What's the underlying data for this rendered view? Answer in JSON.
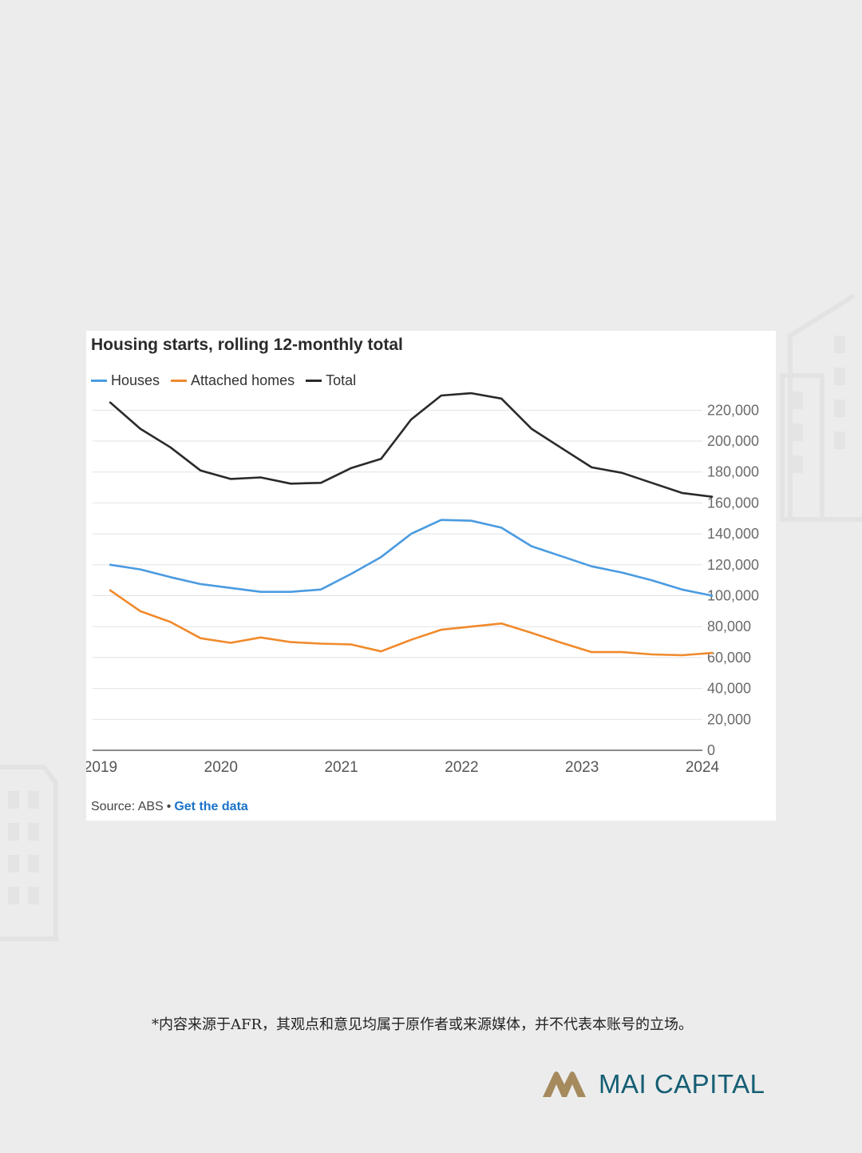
{
  "chart_data": {
    "type": "line",
    "title": "Housing starts, rolling 12-monthly total",
    "xlabel": "",
    "ylabel": "",
    "x_ticks": [
      "2019",
      "2020",
      "2021",
      "2022",
      "2023",
      "2024"
    ],
    "y_ticks": [
      "220,000",
      "200,000",
      "180,000",
      "160,000",
      "140,000",
      "120,000",
      "100,000",
      "80,000",
      "60,000",
      "40,000",
      "20,000",
      "0"
    ],
    "ylim": [
      0,
      230000
    ],
    "xlim": [
      2019.0,
      2024.0
    ],
    "y_axis_position": "right",
    "grid": true,
    "legend_position": "top-left",
    "series": [
      {
        "name": "Houses",
        "color": "#4a9be0",
        "x": [
          2019.08,
          2019.33,
          2019.58,
          2019.83,
          2020.08,
          2020.33,
          2020.58,
          2020.83,
          2021.08,
          2021.33,
          2021.58,
          2021.83,
          2022.08,
          2022.33,
          2022.58,
          2022.83,
          2023.08,
          2023.33,
          2023.58,
          2023.83,
          2024.08
        ],
        "values": [
          120000,
          117000,
          112000,
          107500,
          105000,
          102500,
          102500,
          104000,
          114000,
          125000,
          140000,
          149000,
          148500,
          144000,
          132000,
          125500,
          119000,
          115000,
          110000,
          104000,
          100000
        ]
      },
      {
        "name": "Attached homes",
        "color": "#f08a2c",
        "x": [
          2019.08,
          2019.33,
          2019.58,
          2019.83,
          2020.08,
          2020.33,
          2020.58,
          2020.83,
          2021.08,
          2021.33,
          2021.58,
          2021.83,
          2022.08,
          2022.33,
          2022.58,
          2022.83,
          2023.08,
          2023.33,
          2023.58,
          2023.83,
          2024.08
        ],
        "values": [
          103500,
          90000,
          83000,
          72500,
          69500,
          73000,
          70000,
          69000,
          68500,
          64000,
          71500,
          78000,
          80000,
          82000,
          76000,
          69500,
          63500,
          63500,
          62000,
          61500,
          63000
        ]
      },
      {
        "name": "Total",
        "color": "#2a2a2a",
        "x": [
          2019.08,
          2019.33,
          2019.58,
          2019.83,
          2020.08,
          2020.33,
          2020.58,
          2020.83,
          2021.08,
          2021.33,
          2021.58,
          2021.83,
          2022.08,
          2022.33,
          2022.58,
          2022.83,
          2023.08,
          2023.33,
          2023.58,
          2023.83,
          2024.08
        ],
        "values": [
          225000,
          208000,
          196000,
          181000,
          175500,
          176500,
          172500,
          173000,
          182500,
          188500,
          214000,
          229500,
          231000,
          227500,
          208000,
          195500,
          183000,
          179500,
          173000,
          166500,
          164000
        ]
      }
    ]
  },
  "source": {
    "prefix": "Source: ABS",
    "bullet": "•",
    "link_label": "Get the data"
  },
  "footer": {
    "disclaimer": "*内容来源于AFR，其观点和意见均属于原作者或来源媒体，并不代表本账号的立场。",
    "brand_name": "MAI CAPITAL"
  },
  "colors": {
    "background": "#ececec",
    "brand": "#155e74",
    "brand_logo": "#a58a5e",
    "link": "#1a73c9"
  }
}
